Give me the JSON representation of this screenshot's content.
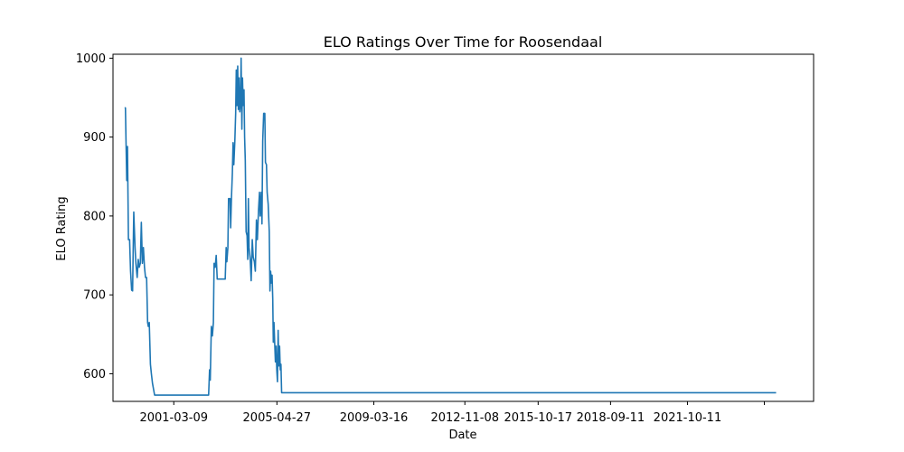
{
  "chart_data": {
    "type": "line",
    "title": "ELO Ratings Over Time for Roosendaal",
    "xlabel": "Date",
    "ylabel": "ELO Rating",
    "x_ticks": [
      "2001-03-09",
      "2005-04-27",
      "2009-03-16",
      "2012-11-08",
      "2015-10-17",
      "2018-09-11",
      "2021-10-11"
    ],
    "y_ticks": [
      600,
      700,
      800,
      900,
      1000
    ],
    "xlim": [
      "1998-10-01",
      "2026-11-01"
    ],
    "ylim": [
      565,
      1005
    ],
    "grid": false,
    "series": [
      {
        "color": "#1f77b4",
        "points": [
          [
            "1999-03-20",
            937
          ],
          [
            "1999-04-01",
            937
          ],
          [
            "1999-04-10",
            893
          ],
          [
            "1999-04-20",
            845
          ],
          [
            "1999-05-01",
            888
          ],
          [
            "1999-05-15",
            770
          ],
          [
            "1999-06-01",
            770
          ],
          [
            "1999-06-15",
            730
          ],
          [
            "1999-07-01",
            706
          ],
          [
            "1999-07-15",
            705
          ],
          [
            "1999-08-01",
            805
          ],
          [
            "1999-08-20",
            760
          ],
          [
            "1999-09-01",
            740
          ],
          [
            "1999-09-20",
            722
          ],
          [
            "1999-10-05",
            745
          ],
          [
            "1999-10-20",
            735
          ],
          [
            "1999-11-05",
            740
          ],
          [
            "1999-11-20",
            792
          ],
          [
            "1999-12-05",
            740
          ],
          [
            "1999-12-20",
            760
          ],
          [
            "2000-01-05",
            735
          ],
          [
            "2000-01-20",
            722
          ],
          [
            "2000-02-05",
            722
          ],
          [
            "2000-02-20",
            665
          ],
          [
            "2000-03-01",
            660
          ],
          [
            "2000-03-15",
            665
          ],
          [
            "2000-04-01",
            612
          ],
          [
            "2000-04-15",
            600
          ],
          [
            "2000-05-01",
            588
          ],
          [
            "2000-06-01",
            573
          ],
          [
            "2002-08-01",
            573
          ],
          [
            "2002-08-15",
            605
          ],
          [
            "2002-08-25",
            592
          ],
          [
            "2002-09-10",
            660
          ],
          [
            "2002-09-25",
            648
          ],
          [
            "2002-10-10",
            665
          ],
          [
            "2002-10-20",
            740
          ],
          [
            "2002-11-05",
            735
          ],
          [
            "2002-11-20",
            750
          ],
          [
            "2002-12-05",
            720
          ],
          [
            "2003-04-01",
            720
          ],
          [
            "2003-04-15",
            760
          ],
          [
            "2003-04-25",
            742
          ],
          [
            "2003-05-10",
            760
          ],
          [
            "2003-05-20",
            822
          ],
          [
            "2003-06-10",
            822
          ],
          [
            "2003-06-20",
            785
          ],
          [
            "2003-07-01",
            822
          ],
          [
            "2003-07-15",
            855
          ],
          [
            "2003-07-25",
            893
          ],
          [
            "2003-08-05",
            865
          ],
          [
            "2003-08-20",
            895
          ],
          [
            "2003-09-01",
            930
          ],
          [
            "2003-09-10",
            985
          ],
          [
            "2003-09-20",
            940
          ],
          [
            "2003-10-01",
            990
          ],
          [
            "2003-10-10",
            935
          ],
          [
            "2003-10-20",
            975
          ],
          [
            "2003-11-01",
            932
          ],
          [
            "2003-11-10",
            940
          ],
          [
            "2003-11-20",
            1000
          ],
          [
            "2003-12-01",
            910
          ],
          [
            "2003-12-10",
            975
          ],
          [
            "2003-12-20",
            940
          ],
          [
            "2004-01-01",
            960
          ],
          [
            "2004-01-10",
            900
          ],
          [
            "2004-01-20",
            870
          ],
          [
            "2004-02-01",
            780
          ],
          [
            "2004-02-15",
            775
          ],
          [
            "2004-02-25",
            745
          ],
          [
            "2004-03-05",
            822
          ],
          [
            "2004-03-15",
            760
          ],
          [
            "2004-04-01",
            745
          ],
          [
            "2004-04-15",
            718
          ],
          [
            "2004-05-01",
            770
          ],
          [
            "2004-05-15",
            748
          ],
          [
            "2004-06-01",
            742
          ],
          [
            "2004-06-15",
            730
          ],
          [
            "2004-07-01",
            795
          ],
          [
            "2004-07-15",
            770
          ],
          [
            "2004-08-01",
            808
          ],
          [
            "2004-08-15",
            830
          ],
          [
            "2004-08-25",
            800
          ],
          [
            "2004-09-10",
            830
          ],
          [
            "2004-09-20",
            790
          ],
          [
            "2004-10-01",
            895
          ],
          [
            "2004-10-15",
            930
          ],
          [
            "2004-11-01",
            930
          ],
          [
            "2004-11-10",
            868
          ],
          [
            "2004-11-25",
            865
          ],
          [
            "2004-12-05",
            830
          ],
          [
            "2004-12-20",
            815
          ],
          [
            "2005-01-05",
            780
          ],
          [
            "2005-01-15",
            705
          ],
          [
            "2005-01-25",
            730
          ],
          [
            "2005-02-05",
            715
          ],
          [
            "2005-02-15",
            725
          ],
          [
            "2005-02-25",
            695
          ],
          [
            "2005-03-05",
            640
          ],
          [
            "2005-03-15",
            665
          ],
          [
            "2005-03-25",
            640
          ],
          [
            "2005-04-05",
            615
          ],
          [
            "2005-04-15",
            635
          ],
          [
            "2005-04-25",
            605
          ],
          [
            "2005-05-05",
            590
          ],
          [
            "2005-05-15",
            655
          ],
          [
            "2005-05-25",
            610
          ],
          [
            "2005-06-05",
            635
          ],
          [
            "2005-06-15",
            605
          ],
          [
            "2005-06-25",
            612
          ],
          [
            "2005-07-05",
            576
          ],
          [
            "2025-05-01",
            576
          ]
        ]
      }
    ]
  }
}
